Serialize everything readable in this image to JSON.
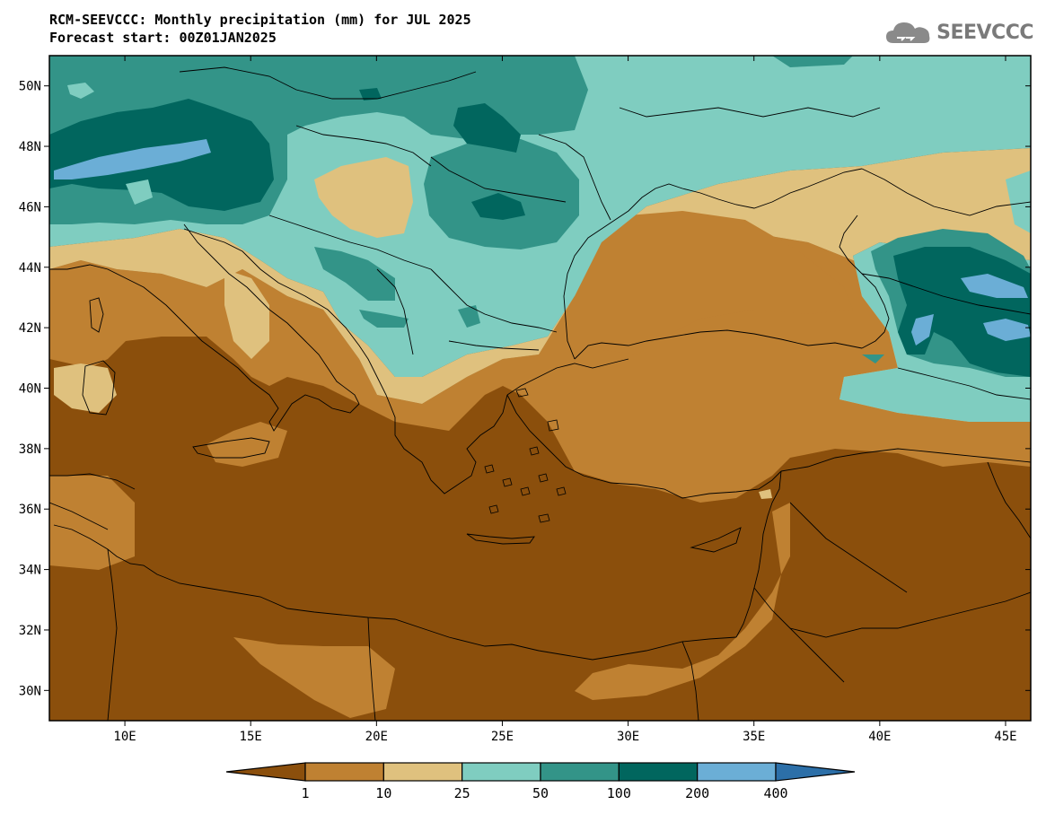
{
  "header": {
    "title": "RCM-SEEVCCC: Monthly precipitation (mm) for JUL 2025",
    "subtitle": "Forecast start: 00Z01JAN2025"
  },
  "logo": {
    "text": "SEEVCCC",
    "icon": "cloud-icon"
  },
  "map": {
    "lon_range": [
      7,
      46
    ],
    "lat_range": [
      29,
      51
    ],
    "lon_ticks": [
      {
        "v": 10,
        "label": "10E"
      },
      {
        "v": 15,
        "label": "15E"
      },
      {
        "v": 20,
        "label": "20E"
      },
      {
        "v": 25,
        "label": "25E"
      },
      {
        "v": 30,
        "label": "30E"
      },
      {
        "v": 35,
        "label": "35E"
      },
      {
        "v": 40,
        "label": "40E"
      },
      {
        "v": 45,
        "label": "45E"
      }
    ],
    "lat_ticks": [
      {
        "v": 30,
        "label": "30N"
      },
      {
        "v": 32,
        "label": "32N"
      },
      {
        "v": 34,
        "label": "34N"
      },
      {
        "v": 36,
        "label": "36N"
      },
      {
        "v": 38,
        "label": "38N"
      },
      {
        "v": 40,
        "label": "40N"
      },
      {
        "v": 42,
        "label": "42N"
      },
      {
        "v": 44,
        "label": "44N"
      },
      {
        "v": 46,
        "label": "46N"
      },
      {
        "v": 48,
        "label": "48N"
      },
      {
        "v": 50,
        "label": "50N"
      }
    ]
  },
  "colorbar": {
    "colors": [
      "#8b4f0c",
      "#bf8132",
      "#dfc17e",
      "#7fcdc0",
      "#339488",
      "#01665e",
      "#6baed6",
      "#2c6fa8"
    ],
    "levels": [
      "1",
      "10",
      "25",
      "50",
      "100",
      "200",
      "400"
    ]
  }
}
